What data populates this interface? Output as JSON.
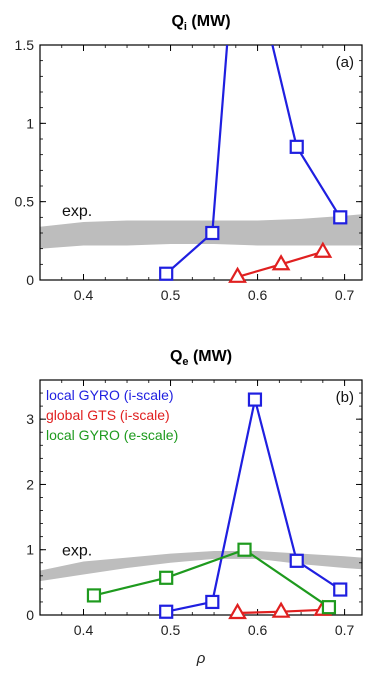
{
  "chart_data": [
    {
      "type": "line",
      "title_main": "Q",
      "title_sub": "i",
      "title_unit": " (MW)",
      "panel_label": "(a)",
      "xlim": [
        0.35,
        0.72
      ],
      "ylim": [
        0,
        1.5
      ],
      "xticks": [
        "0.4",
        "0.5",
        "0.6",
        "0.7"
      ],
      "xtick_values": [
        0.4,
        0.5,
        0.6,
        0.7
      ],
      "yticks": [
        "0",
        "0.5",
        "1",
        "1.5"
      ],
      "ytick_values": [
        0,
        0.5,
        1,
        1.5
      ],
      "exp_band": {
        "label": "exp.",
        "x": [
          0.35,
          0.4,
          0.45,
          0.5,
          0.55,
          0.6,
          0.65,
          0.7,
          0.72
        ],
        "lower": [
          0.2,
          0.22,
          0.22,
          0.23,
          0.23,
          0.22,
          0.22,
          0.22,
          0.22
        ],
        "upper": [
          0.34,
          0.37,
          0.38,
          0.38,
          0.38,
          0.38,
          0.39,
          0.41,
          0.42
        ],
        "color": "#bdbdbd"
      },
      "series": [
        {
          "name": "local GYRO (i-scale)",
          "color": "#1f1fe0",
          "marker": "square",
          "points": [
            [
              0.495,
              0.04
            ],
            [
              0.548,
              0.3
            ],
            [
              0.565,
              1.5
            ]
          ],
          "points2": [
            [
              0.617,
              1.5
            ],
            [
              0.645,
              0.85
            ],
            [
              0.695,
              0.4
            ]
          ]
        },
        {
          "name": "global GTS (i-scale)",
          "color": "#e02020",
          "marker": "triangle",
          "points": [
            [
              0.577,
              0.02
            ],
            [
              0.627,
              0.1
            ],
            [
              0.675,
              0.18
            ]
          ]
        }
      ]
    },
    {
      "type": "line",
      "title_main": "Q",
      "title_sub": "e",
      "title_unit": " (MW)",
      "panel_label": "(b)",
      "xlim": [
        0.35,
        0.72
      ],
      "ylim": [
        0,
        3.6
      ],
      "xticks": [
        "0.4",
        "0.5",
        "0.6",
        "0.7"
      ],
      "xtick_values": [
        0.4,
        0.5,
        0.6,
        0.7
      ],
      "yticks": [
        "0",
        "1",
        "2",
        "3"
      ],
      "ytick_values": [
        0,
        1,
        2,
        3
      ],
      "xlabel": "ρ",
      "exp_band": {
        "label": "exp.",
        "x": [
          0.35,
          0.4,
          0.45,
          0.5,
          0.55,
          0.6,
          0.65,
          0.7,
          0.72
        ],
        "lower": [
          0.52,
          0.62,
          0.72,
          0.8,
          0.86,
          0.86,
          0.78,
          0.72,
          0.7
        ],
        "upper": [
          0.68,
          0.82,
          0.88,
          0.94,
          0.98,
          0.98,
          0.94,
          0.9,
          0.88
        ],
        "color": "#bdbdbd"
      },
      "legend": [
        {
          "text": "local GYRO (i-scale)",
          "color": "#1f1fe0"
        },
        {
          "text": "global GTS (i-scale)",
          "color": "#e02020"
        },
        {
          "text": "local GYRO (e-scale)",
          "color": "#1e9a1e"
        }
      ],
      "series": [
        {
          "name": "local GYRO (i-scale)",
          "color": "#1f1fe0",
          "marker": "square",
          "points": [
            [
              0.495,
              0.05
            ],
            [
              0.548,
              0.2
            ],
            [
              0.597,
              3.3
            ],
            [
              0.645,
              0.83
            ],
            [
              0.695,
              0.39
            ]
          ]
        },
        {
          "name": "global GTS (i-scale)",
          "color": "#e02020",
          "marker": "triangle",
          "points": [
            [
              0.577,
              0.03
            ],
            [
              0.627,
              0.05
            ],
            [
              0.675,
              0.08
            ]
          ]
        },
        {
          "name": "local GYRO (e-scale)",
          "color": "#1e9a1e",
          "marker": "square",
          "points": [
            [
              0.412,
              0.3
            ],
            [
              0.495,
              0.57
            ],
            [
              0.585,
              1.0
            ],
            [
              0.682,
              0.12
            ]
          ]
        }
      ]
    }
  ]
}
